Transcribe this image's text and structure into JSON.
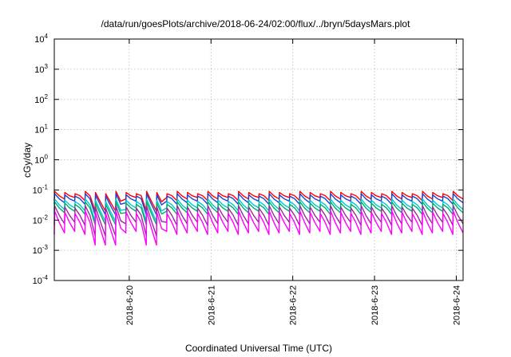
{
  "chart_data": {
    "type": "line",
    "title": "/data/run/goesPlots/archive/2018-06-24/02:00/flux/../bryn/5daysMars.plot",
    "xlabel": "Coordinated Universal Time (UTC)",
    "ylabel": "cGy/day",
    "yscale": "log",
    "ylim": [
      0.0001,
      10000
    ],
    "xlim": [
      "2018-06-19 02:00",
      "2018-06-24 02:00"
    ],
    "grid": true,
    "legend": "none",
    "y_ticks": [
      {
        "base": "10",
        "exp": "-4"
      },
      {
        "base": "10",
        "exp": "-3"
      },
      {
        "base": "10",
        "exp": "-2"
      },
      {
        "base": "10",
        "exp": "-1"
      },
      {
        "base": "10",
        "exp": "0"
      },
      {
        "base": "10",
        "exp": "1"
      },
      {
        "base": "10",
        "exp": "2"
      },
      {
        "base": "10",
        "exp": "3"
      },
      {
        "base": "10",
        "exp": "4"
      }
    ],
    "x_ticks": [
      "2018-6-20",
      "2018-6-21",
      "2018-6-22",
      "2018-6-23",
      "2018-6-24"
    ],
    "period_hours": 3,
    "series": [
      {
        "color": "#ff0000",
        "peak_max": 0.09,
        "trough_min": 0.02
      },
      {
        "color": "#1f3fd0",
        "peak_max": 0.075,
        "trough_min": 0.015
      },
      {
        "color": "#00c8d8",
        "peak_max": 0.05,
        "trough_min": 0.009
      },
      {
        "color": "#00b060",
        "peak_max": 0.04,
        "trough_min": 0.007
      },
      {
        "color": "#9a2aa0",
        "peak_max": 0.03,
        "trough_min": 0.003
      },
      {
        "color": "#ff00ff",
        "peak_max": 0.02,
        "trough_min": 0.0015
      }
    ],
    "dip_periods": [
      {
        "start": "2018-06-19 14:00",
        "end": "2018-06-19 21:00"
      },
      {
        "start": "2018-06-20 04:00",
        "end": "2018-06-20 08:00"
      }
    ]
  }
}
